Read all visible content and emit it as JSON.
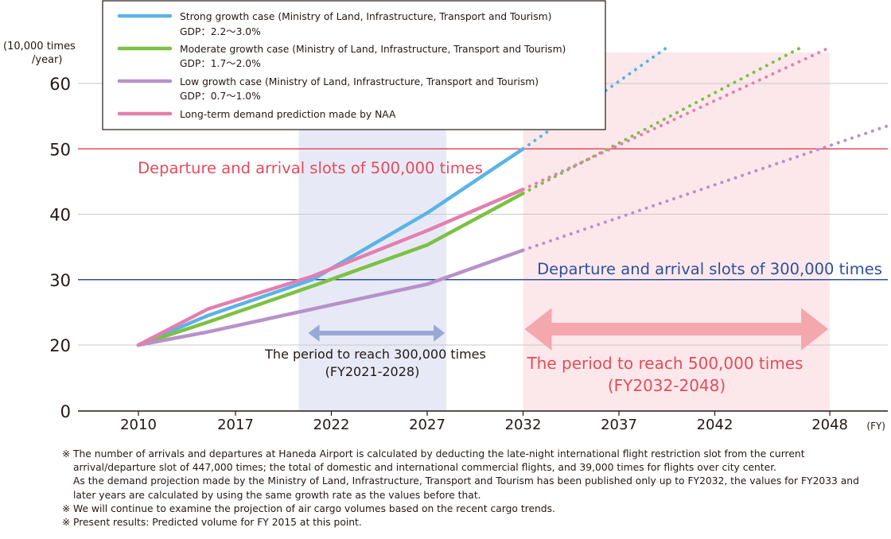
{
  "chart_data": {
    "type": "line",
    "y_unit_label": [
      "(10,000 times",
      "/year)"
    ],
    "x_unit_label": "(FY)",
    "ylim": [
      0,
      65
    ],
    "y_ticks": [
      0,
      20,
      30,
      40,
      50,
      60
    ],
    "x_tick_labels": [
      "2010",
      "2017",
      "2022",
      "2027",
      "2032",
      "2037",
      "2042",
      "2048"
    ],
    "grid": true,
    "legend_position": "top-left",
    "series": [
      {
        "name": "Strong growth case (Ministry of Land, Infrastructure, Transport and Tourism)",
        "sub": "GDP：2.2〜3.0%",
        "color": "#5bb3e6",
        "solid": [
          [
            2010,
            20
          ],
          [
            2015,
            24.5
          ],
          [
            2021,
            30
          ],
          [
            2027,
            40.2
          ],
          [
            2032,
            50
          ]
        ],
        "dotted": [
          [
            2032,
            50
          ],
          [
            2039.5,
            65.5
          ]
        ]
      },
      {
        "name": "Moderate growth case (Ministry of Land, Infrastructure, Transport and Tourism)",
        "sub": "GDP：1.7〜2.0%",
        "color": "#7cc143",
        "solid": [
          [
            2010,
            20
          ],
          [
            2015,
            23.5
          ],
          [
            2021,
            29
          ],
          [
            2027,
            35.3
          ],
          [
            2032,
            43.2
          ]
        ],
        "dotted": [
          [
            2032,
            43.2
          ],
          [
            2046.5,
            65.5
          ]
        ]
      },
      {
        "name": "Low growth case (Ministry of Land, Infrastructure, Transport and Tourism)",
        "sub": "GDP：0.7〜1.0%",
        "color": "#b792c9",
        "solid": [
          [
            2010,
            20
          ],
          [
            2015,
            22
          ],
          [
            2021,
            25.5
          ],
          [
            2027,
            29.3
          ],
          [
            2032,
            34.5
          ]
        ],
        "dotted": [
          [
            2032,
            34.5
          ],
          [
            2052,
            54.5
          ]
        ]
      },
      {
        "name": "Long-term demand prediction made by NAA",
        "sub": "",
        "color": "#e47fb0",
        "solid": [
          [
            2010,
            20
          ],
          [
            2015,
            25.5
          ],
          [
            2021,
            30.5
          ],
          [
            2027,
            37.5
          ],
          [
            2032,
            43.8
          ]
        ],
        "dotted": [
          [
            2032,
            43.8
          ],
          [
            2048,
            65.5
          ]
        ]
      }
    ],
    "reference_lines": [
      {
        "y": 50,
        "label": "Departure and arrival slots of 500,000 times",
        "color": "#e34c5c"
      },
      {
        "y": 30,
        "label": "Departure and arrival slots of 300,000 times",
        "color": "#2f4f9c"
      }
    ],
    "periods": [
      {
        "from": 2020.3,
        "to": 2028,
        "label": "The period to reach 300,000 times",
        "range": "(FY2021-2028)",
        "fill": "#e7eaf6",
        "arrow": "#97a9d7",
        "text_color": "#231815"
      },
      {
        "from": 2032,
        "to": 2048,
        "label": "The period to reach 500,000 times",
        "range": "(FY2032-2048)",
        "fill": "#fce8ea",
        "arrow": "#f4a7ad",
        "text_color": "#e34c5c"
      }
    ]
  },
  "notes": [
    {
      "mark": "※",
      "text": "The number of arrivals and departures at Haneda Airport is calculated by deducting the late-night international flight restriction slot from the current arrival/departure slot of 447,000 times; the total of domestic and international commercial flights, and 39,000 times for flights over city center.",
      "text2": "As the demand projection made by the Ministry of Land, Infrastructure, Transport and Tourism has been published only up to FY2032, the values for FY2033 and later years are calculated by using the same growth rate as the values before that."
    },
    {
      "mark": "※",
      "text": "We will continue to examine the projection of air cargo volumes based on the recent cargo trends.",
      "text2": ""
    },
    {
      "mark": "※",
      "text": "Present results: Predicted volume for FY 2015 at this point.",
      "text2": ""
    }
  ]
}
